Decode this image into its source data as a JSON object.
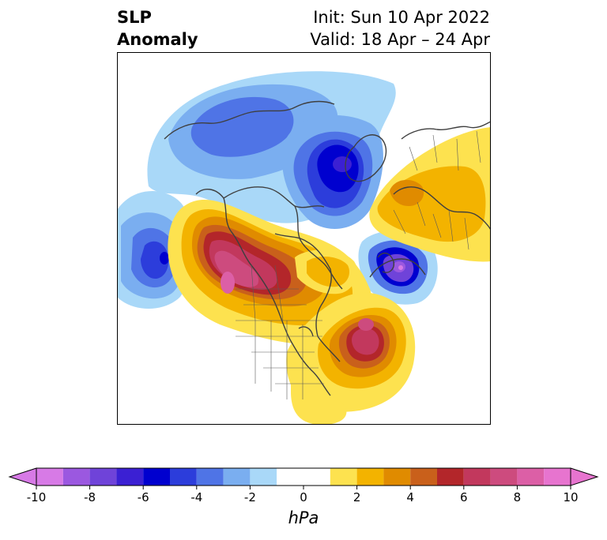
{
  "title": {
    "left_line1": "SLP",
    "left_line2": "Anomaly",
    "right_line1": "Init: Sun 10 Apr 2022",
    "right_line2": "Valid: 18 Apr – 24 Apr"
  },
  "colorbar": {
    "unit": "hPa",
    "ticks": [
      "-10",
      "-8",
      "-6",
      "-4",
      "-2",
      "0",
      "2",
      "4",
      "6",
      "8",
      "10"
    ],
    "levels": [
      -10,
      -9,
      -8,
      -7,
      -6,
      -5,
      -4,
      -3,
      -2,
      -1,
      1,
      2,
      3,
      4,
      5,
      6,
      7,
      8,
      9,
      10
    ],
    "colors": [
      "#d77ae6",
      "#9b58e0",
      "#6f43d9",
      "#3b20d3",
      "#0000cf",
      "#2c3ddb",
      "#4f74e6",
      "#7aaef0",
      "#a9d8f8",
      "#ffffff",
      "#fde24f",
      "#f3b300",
      "#e08b00",
      "#c9601b",
      "#b3262a",
      "#c2385d",
      "#cd4b7e",
      "#dc5fa6",
      "#e774cf"
    ],
    "extend_min_color": "#d77ae6",
    "extend_max_color": "#e774cf"
  },
  "map": {
    "projection": "north-polar-stereographic",
    "anomaly_centers": [
      {
        "name": "north-pacific-low",
        "value": -6
      },
      {
        "name": "greenland-low",
        "value": -7
      },
      {
        "name": "canada-low",
        "value": -5
      },
      {
        "name": "western-north-america-high",
        "value": 8
      },
      {
        "name": "north-atlantic-high",
        "value": 7
      },
      {
        "name": "europe-low",
        "value": -9
      },
      {
        "name": "siberia-high",
        "value": 3
      }
    ]
  }
}
